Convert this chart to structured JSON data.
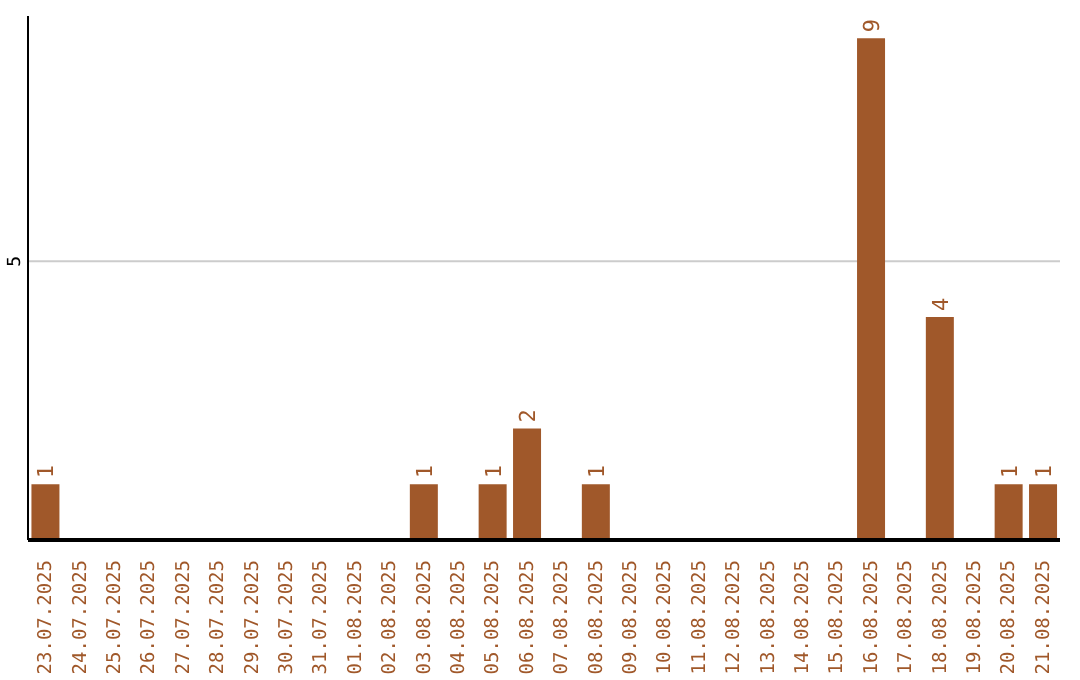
{
  "chart_data": {
    "type": "bar",
    "categories": [
      "23.07.2025",
      "24.07.2025",
      "25.07.2025",
      "26.07.2025",
      "27.07.2025",
      "28.07.2025",
      "29.07.2025",
      "30.07.2025",
      "31.07.2025",
      "01.08.2025",
      "02.08.2025",
      "03.08.2025",
      "04.08.2025",
      "05.08.2025",
      "06.08.2025",
      "07.08.2025",
      "08.08.2025",
      "09.08.2025",
      "10.08.2025",
      "11.08.2025",
      "12.08.2025",
      "13.08.2025",
      "14.08.2025",
      "15.08.2025",
      "16.08.2025",
      "17.08.2025",
      "18.08.2025",
      "19.08.2025",
      "20.08.2025",
      "21.08.2025"
    ],
    "values": [
      1,
      0,
      0,
      0,
      0,
      0,
      0,
      0,
      0,
      0,
      0,
      1,
      0,
      1,
      2,
      0,
      1,
      0,
      0,
      0,
      0,
      0,
      0,
      0,
      9,
      0,
      4,
      0,
      1,
      1
    ],
    "value_labels": [
      "1",
      null,
      null,
      null,
      null,
      null,
      null,
      null,
      null,
      null,
      null,
      "1",
      null,
      "1",
      "2",
      null,
      "1",
      null,
      null,
      null,
      null,
      null,
      null,
      null,
      "9",
      null,
      "4",
      null,
      "1",
      "1"
    ],
    "color": "#a0582a",
    "ylim": [
      0,
      9.4
    ],
    "yticks": [
      5
    ],
    "grid": "y"
  }
}
